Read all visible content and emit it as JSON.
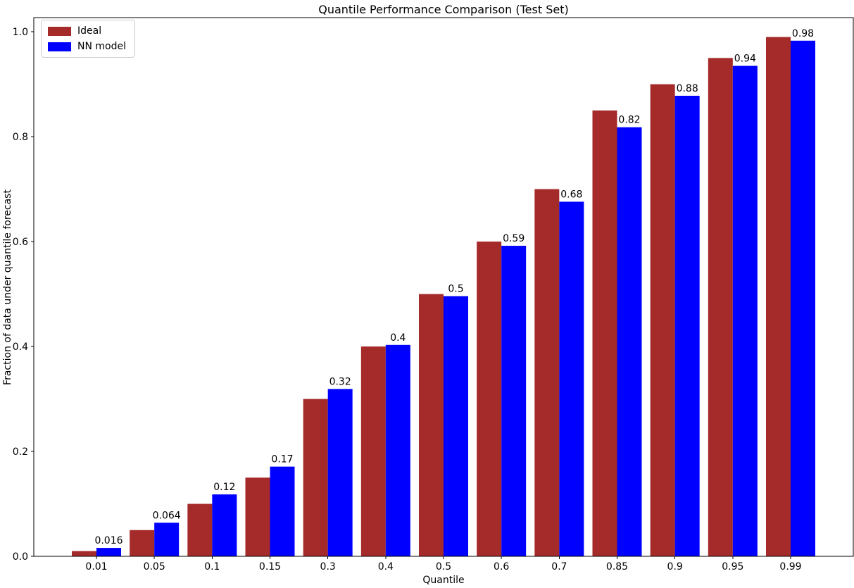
{
  "figure": {
    "background": "#ffffff"
  },
  "chart_data": {
    "type": "bar",
    "title": "Quantile Performance Comparison (Test Set)",
    "xlabel": "Quantile",
    "ylabel": "Fraction of data under quantile forecast",
    "categories": [
      "0.01",
      "0.05",
      "0.1",
      "0.15",
      "0.3",
      "0.4",
      "0.5",
      "0.6",
      "0.7",
      "0.85",
      "0.9",
      "0.95",
      "0.99"
    ],
    "series": [
      {
        "name": "Ideal",
        "color": "#a52a2a",
        "values": [
          0.01,
          0.05,
          0.1,
          0.15,
          0.3,
          0.4,
          0.5,
          0.6,
          0.7,
          0.85,
          0.9,
          0.95,
          0.99
        ]
      },
      {
        "name": "NN model",
        "color": "#0000ff",
        "values": [
          0.016,
          0.064,
          0.118,
          0.171,
          0.319,
          0.403,
          0.496,
          0.592,
          0.676,
          0.818,
          0.878,
          0.935,
          0.983
        ],
        "bar_labels": [
          "0.016",
          "0.064",
          "0.12",
          "0.17",
          "0.32",
          "0.4",
          "0.5",
          "0.59",
          "0.68",
          "0.82",
          "0.88",
          "0.94",
          "0.98"
        ]
      }
    ],
    "yticks": {
      "values": [
        0.0,
        0.2,
        0.4,
        0.6,
        0.8,
        1.0
      ],
      "labels": [
        "0.0",
        "0.2",
        "0.4",
        "0.6",
        "0.8",
        "1.0"
      ]
    },
    "ylim": [
      0,
      1.027
    ],
    "grid": false,
    "legend": {
      "position": "upper-left",
      "entries": [
        "Ideal",
        "NN model"
      ]
    },
    "axis_color": "#000000",
    "text_color": "#000000"
  }
}
